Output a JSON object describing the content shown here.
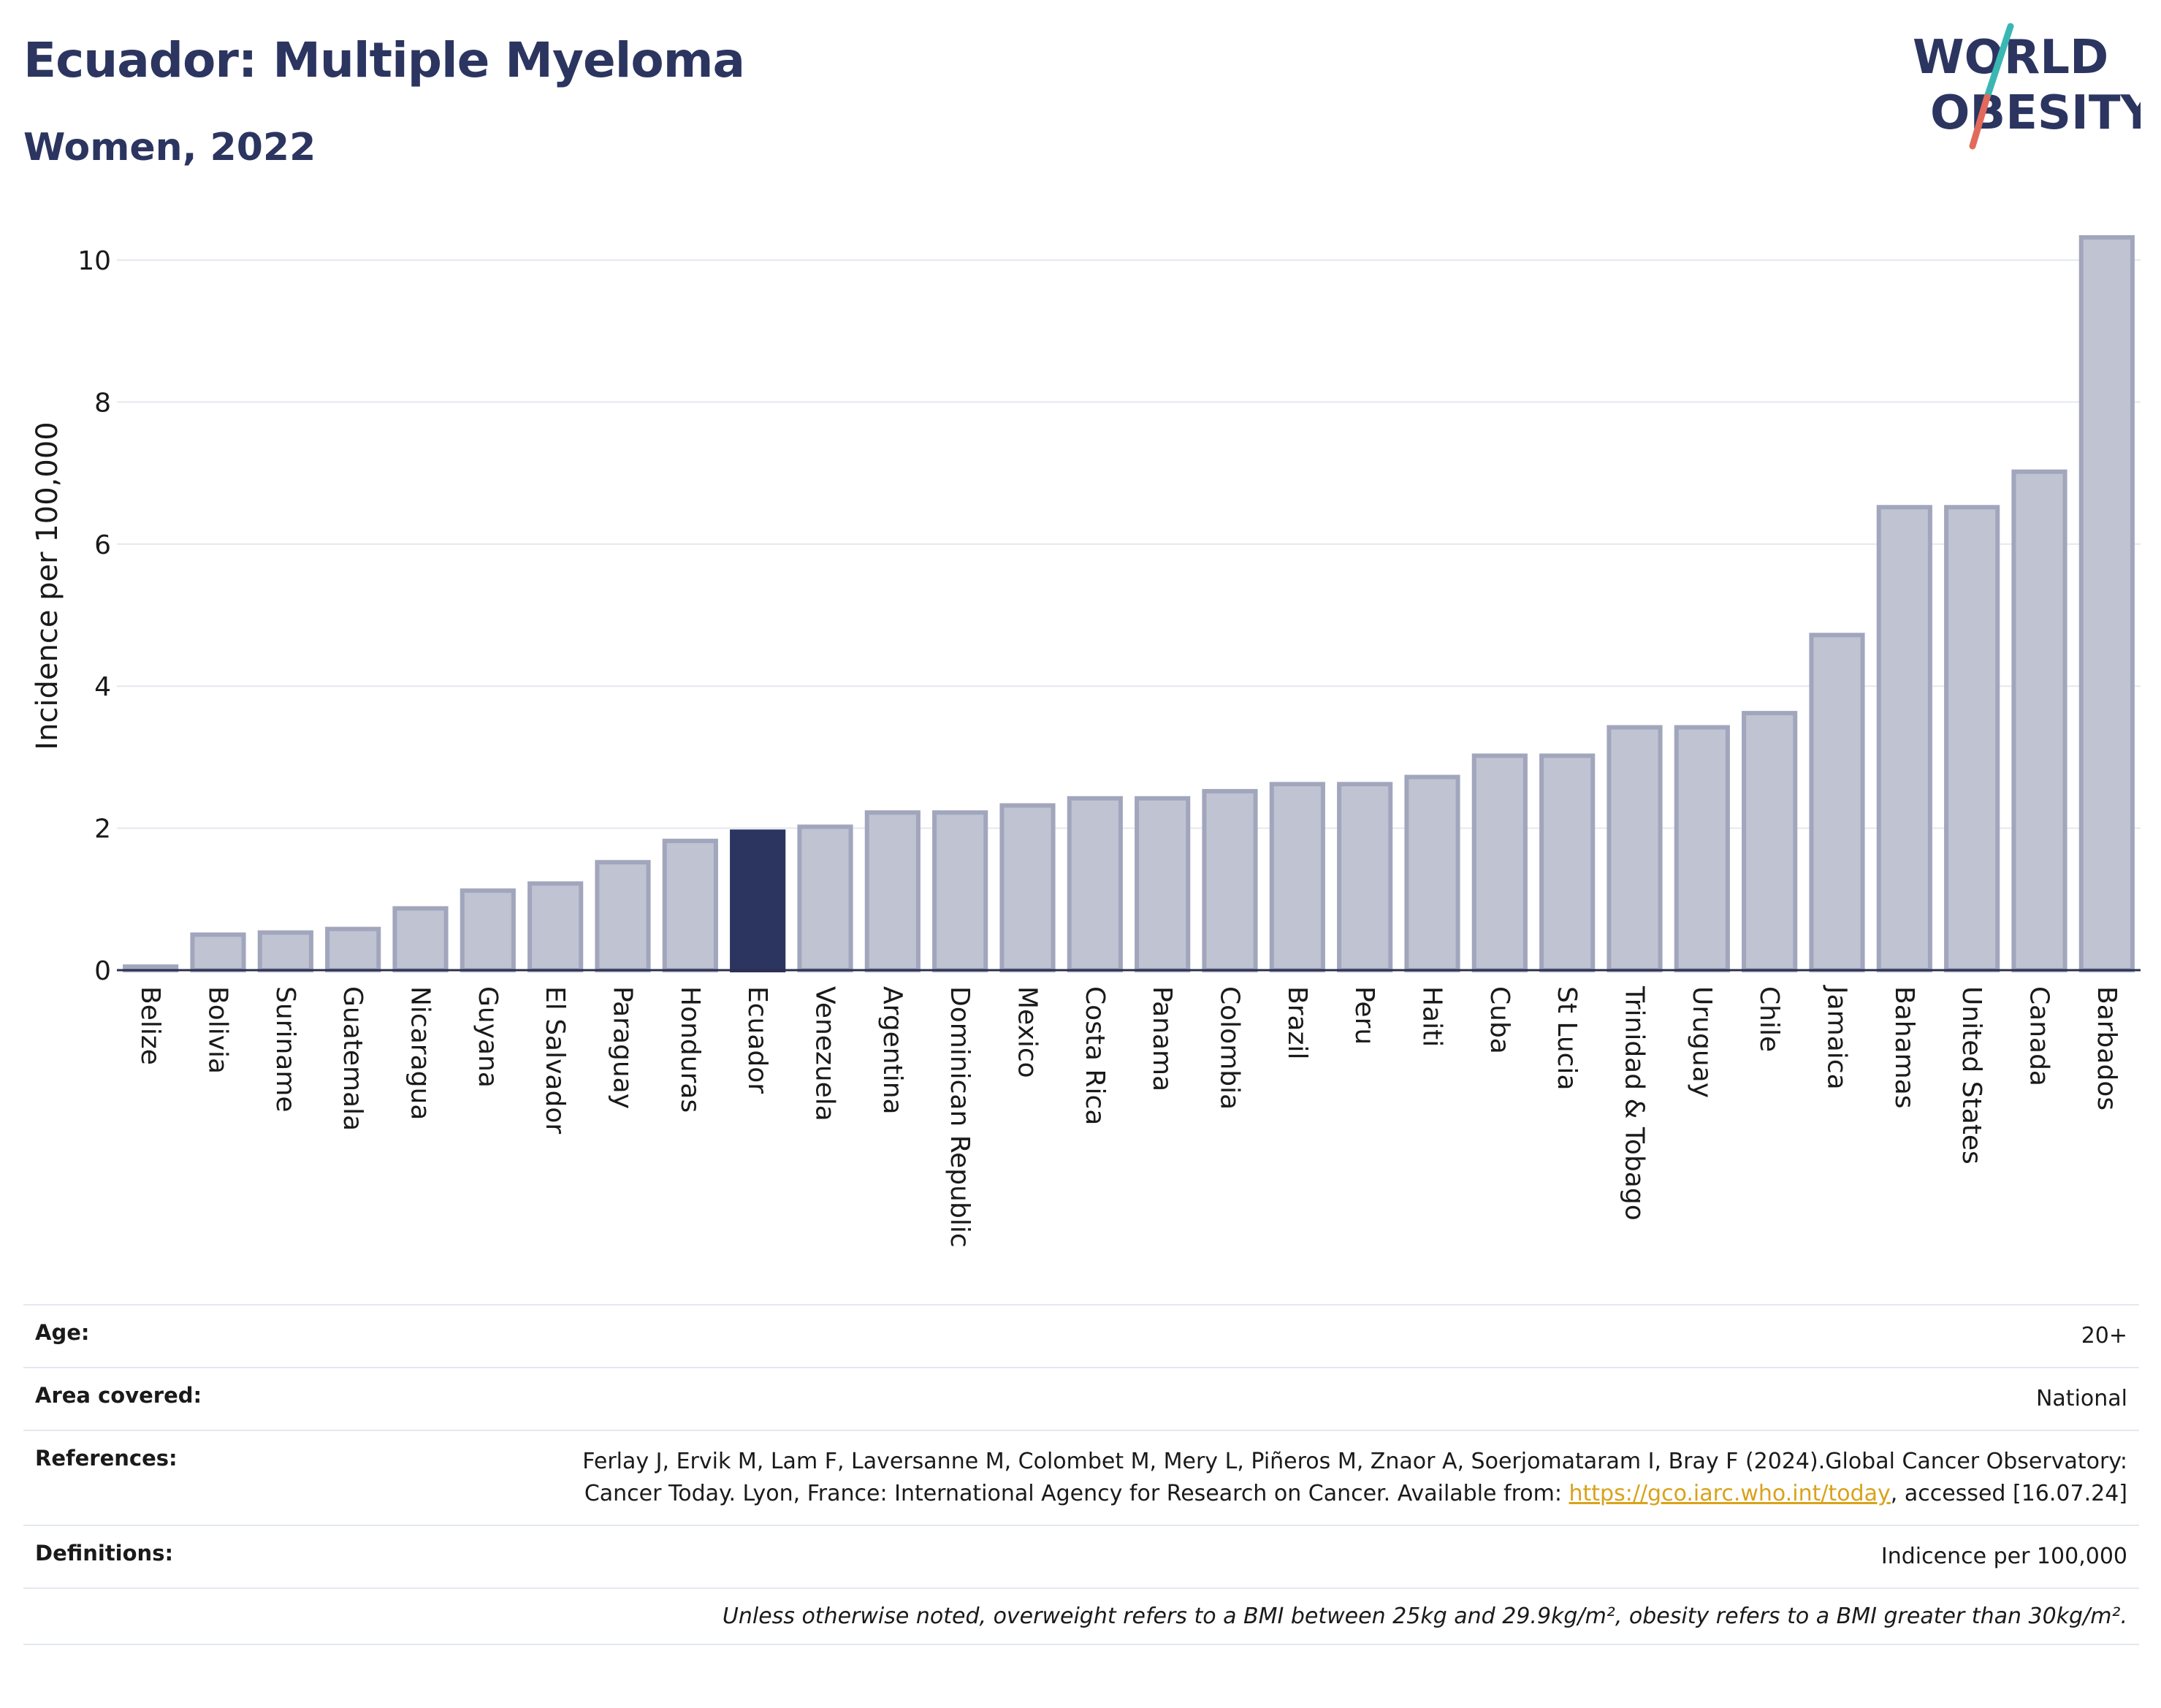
{
  "header": {
    "title": "Ecuador: Multiple Myeloma",
    "subtitle": "Women, 2022"
  },
  "logo": {
    "line1": "WORLD",
    "line2": "OBESITY",
    "colors": {
      "text": "#2b3560",
      "slash_top": "#3ab7b3",
      "slash_bottom": "#e26a5a"
    }
  },
  "chart_data": {
    "type": "bar",
    "ylabel": "Incidence per 100,000",
    "ylim": [
      0,
      10.5
    ],
    "yticks": [
      0,
      2,
      4,
      6,
      8,
      10
    ],
    "grid": true,
    "highlight": "Ecuador",
    "colors": {
      "bar": "#c0c3d1",
      "bar_edge": "#a1a6bd",
      "highlight": "#2b3560"
    },
    "categories": [
      "Belize",
      "Bolivia",
      "Suriname",
      "Guatemala",
      "Nicaragua",
      "Guyana",
      "El Salvador",
      "Paraguay",
      "Honduras",
      "Ecuador",
      "Venezuela",
      "Argentina",
      "Dominican Republic",
      "Mexico",
      "Costa Rica",
      "Panama",
      "Colombia",
      "Brazil",
      "Peru",
      "Haiti",
      "Cuba",
      "St Lucia",
      "Trinidad & Tobago",
      "Uruguay",
      "Chile",
      "Jamaica",
      "Bahamas",
      "United States",
      "Canada",
      "Barbados"
    ],
    "values": [
      0.05,
      0.5,
      0.53,
      0.58,
      0.87,
      1.12,
      1.22,
      1.52,
      1.82,
      1.95,
      2.02,
      2.22,
      2.22,
      2.32,
      2.42,
      2.42,
      2.52,
      2.62,
      2.62,
      2.72,
      3.02,
      3.02,
      3.42,
      3.42,
      3.62,
      4.72,
      6.52,
      6.52,
      7.02,
      10.32
    ]
  },
  "meta": {
    "age_label": "Age:",
    "age_value": "20+",
    "area_label": "Area covered:",
    "area_value": "National",
    "references_label": "References:",
    "references_text_1": "Ferlay J, Ervik M, Lam F, Laversanne M, Colombet M, Mery L, Piñeros M, Znaor A, Soerjomataram I, Bray F (2024).Global Cancer Observatory: Cancer Today. Lyon, France: International Agency for Research on Cancer. Available from: ",
    "references_link": "https://gco.iarc.who.int/today",
    "references_text_2": ", accessed [16.07.24]",
    "definitions_label": "Definitions:",
    "definitions_value": "Indicence per 100,000",
    "note": "Unless otherwise noted, overweight refers to a BMI between 25kg and 29.9kg/m², obesity refers to a BMI greater than 30kg/m².",
    "link_color": "#d9a21b"
  }
}
